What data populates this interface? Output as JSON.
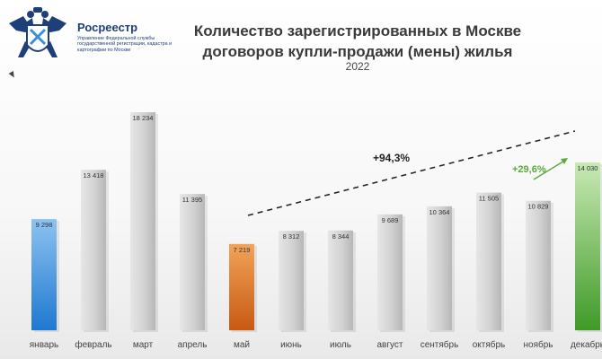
{
  "header": {
    "org_name": "Росреестр",
    "org_subtitle": "Управление Федеральной службы государственной регистрации, кадастра и картографии по Москве",
    "title": "Количество зарегистрированных в Москве договоров купли-продажи (мены) жилья",
    "subtitle": "2022"
  },
  "colors": {
    "bar_default": "#d4d4d4",
    "bar_january": "#3a8fdc",
    "bar_may": "#e07a2a",
    "bar_december": "#6cbf4a",
    "annotation_green": "#5aab3c",
    "title_text": "#3a3a3a",
    "brand": "#1f3f79"
  },
  "chart_data": {
    "type": "bar",
    "title": "Количество зарегистрированных в Москве договоров купли-продажи (мены) жилья",
    "subtitle": "2022",
    "categories": [
      "январь",
      "февраль",
      "март",
      "апрель",
      "май",
      "июнь",
      "июль",
      "август",
      "сентябрь",
      "октябрь",
      "ноябрь",
      "декабрь"
    ],
    "values": [
      9298,
      13418,
      18234,
      11395,
      7219,
      8312,
      8344,
      9689,
      10364,
      11505,
      10829,
      14030
    ],
    "value_labels": [
      "9 298",
      "13 418",
      "18 234",
      "11 395",
      "7 219",
      "8 312",
      "8 344",
      "9 689",
      "10 364",
      "11 505",
      "10 829",
      "14 030"
    ],
    "ylim": [
      0,
      19000
    ],
    "grid": false,
    "annotations": [
      {
        "text": "+94,3%",
        "from": "май",
        "to": "декабрь",
        "style": "dashed-line",
        "color": "#222222"
      },
      {
        "text": "+29,6%",
        "from": "ноябрь",
        "to": "декабрь",
        "style": "arrow",
        "color": "#5aab3c"
      }
    ]
  }
}
